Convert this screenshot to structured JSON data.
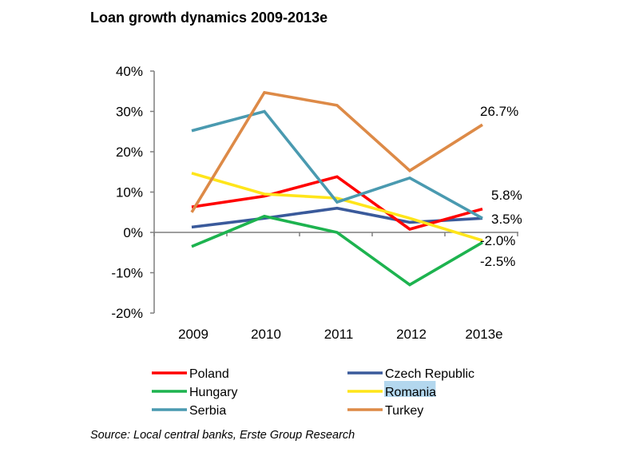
{
  "title": "Loan growth dynamics 2009-2013e",
  "source": "Source: Local central banks, Erste Group Research",
  "chart_data": {
    "type": "line",
    "categories": [
      "2009",
      "2010",
      "2011",
      "2012",
      "2013e"
    ],
    "ylim": [
      -20,
      40
    ],
    "yticks": [
      -20,
      -10,
      0,
      10,
      20,
      30,
      40
    ],
    "ytick_labels": [
      "-20%",
      "-10%",
      "0%",
      "10%",
      "20%",
      "30%",
      "40%"
    ],
    "grid": false,
    "legend_position": "bottom",
    "series": [
      {
        "name": "Poland",
        "color": "#ff0000",
        "values": [
          6.3,
          9.0,
          13.8,
          0.8,
          5.8
        ],
        "end_label": "5.8%"
      },
      {
        "name": "Czech Republic",
        "color": "#3a5a9b",
        "values": [
          1.3,
          3.5,
          6.0,
          2.5,
          3.5
        ],
        "end_label": "3.5%"
      },
      {
        "name": "Hungary",
        "color": "#1db34f",
        "values": [
          -3.5,
          4.0,
          0.0,
          -13.0,
          -2.5
        ],
        "end_label": "-2.5%"
      },
      {
        "name": "Romania",
        "color": "#ffe51a",
        "values": [
          14.7,
          9.5,
          8.5,
          3.5,
          -2.0
        ],
        "end_label": "-2.0%",
        "highlighted": true
      },
      {
        "name": "Serbia",
        "color": "#4a9ab0",
        "values": [
          25.2,
          30.0,
          7.5,
          13.5,
          3.5
        ],
        "end_label": ""
      },
      {
        "name": "Turkey",
        "color": "#dd8a47",
        "values": [
          5.0,
          34.7,
          31.5,
          15.3,
          26.7
        ],
        "end_label": "26.7%"
      }
    ]
  }
}
